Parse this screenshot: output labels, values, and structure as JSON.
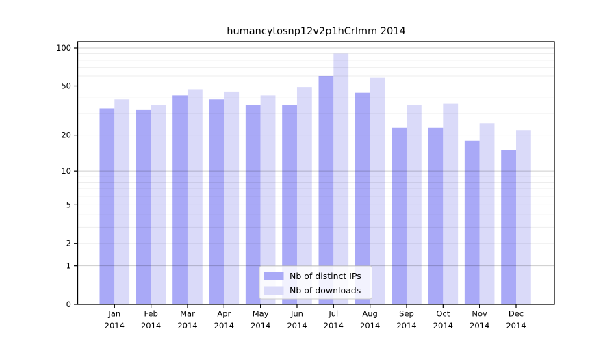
{
  "chart_data": {
    "type": "bar",
    "title": "humancytosnp12v2p1hCrlmm 2014",
    "categories": [
      "Jan",
      "Feb",
      "Mar",
      "Apr",
      "May",
      "Jun",
      "Jul",
      "Aug",
      "Sep",
      "Oct",
      "Nov",
      "Dec"
    ],
    "year_label": "2014",
    "series": [
      {
        "name": "Nb of distinct IPs",
        "color": "#a9a9f7",
        "values": [
          33,
          32,
          42,
          39,
          35,
          35,
          60,
          44,
          23,
          23,
          18,
          15
        ]
      },
      {
        "name": "Nb of downloads",
        "color": "#dadaf9",
        "values": [
          39,
          35,
          47,
          45,
          42,
          49,
          90,
          58,
          35,
          36,
          25,
          22
        ]
      }
    ],
    "xlabel": "",
    "ylabel": "",
    "y_scale": "log10(1+x)",
    "ylim": [
      0,
      109
    ],
    "y_ticks": [
      0,
      1,
      2,
      5,
      10,
      20,
      50,
      100
    ],
    "y_gridlines": {
      "minor": [
        2,
        3,
        4,
        5,
        6,
        7,
        8,
        9,
        20,
        30,
        40,
        50,
        60,
        70,
        80,
        90
      ],
      "major": [
        1,
        10,
        100
      ]
    },
    "grid": "on",
    "legend_position": "lower center",
    "colors": {
      "background": "#ffffff",
      "axis": "#000000",
      "grid_minor": "rgba(0,0,0,0.07)",
      "grid_major": "rgba(0,0,0,0.20)",
      "legend_border": "#cccccc",
      "legend_background": "rgba(255,255,255,0.85)"
    }
  }
}
